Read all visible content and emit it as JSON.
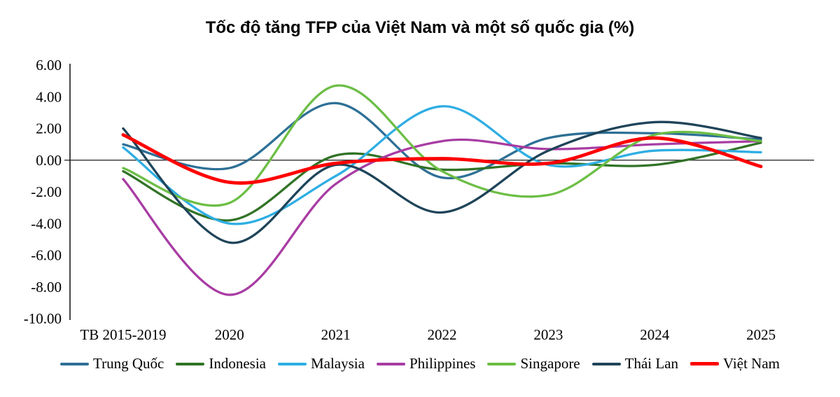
{
  "chart_data": {
    "type": "line",
    "title": "Tốc độ tăng TFP của Việt Nam và một số quốc gia (%)",
    "categories": [
      "TB 2015-2019",
      "2020",
      "2021",
      "2022",
      "2023",
      "2024",
      "2025"
    ],
    "series": [
      {
        "name": "Trung Quốc",
        "color": "#2E7096",
        "line_width": 3.3,
        "values": [
          1.0,
          -0.5,
          3.6,
          -1.1,
          1.4,
          1.7,
          1.3
        ]
      },
      {
        "name": "Indonesia",
        "color": "#317326",
        "line_width": 3.3,
        "values": [
          -0.7,
          -3.8,
          0.3,
          -0.6,
          -0.2,
          -0.3,
          1.1
        ]
      },
      {
        "name": "Malaysia",
        "color": "#2FAEE3",
        "line_width": 3.3,
        "values": [
          0.8,
          -4.0,
          -1.0,
          3.4,
          -0.3,
          0.6,
          0.5
        ]
      },
      {
        "name": "Philippines",
        "color": "#A83CA3",
        "line_width": 3.3,
        "values": [
          -1.2,
          -8.5,
          -1.5,
          1.2,
          0.7,
          1.0,
          1.2
        ]
      },
      {
        "name": "Singapore",
        "color": "#6CBE45",
        "line_width": 3.3,
        "values": [
          -0.5,
          -2.7,
          4.7,
          -0.7,
          -2.2,
          1.6,
          1.2
        ]
      },
      {
        "name": "Thái Lan",
        "color": "#1F4459",
        "line_width": 3.3,
        "values": [
          2.0,
          -5.2,
          -0.3,
          -3.3,
          0.6,
          2.4,
          1.4
        ]
      },
      {
        "name": "Việt Nam",
        "color": "#FF0000",
        "line_width": 4.8,
        "values": [
          1.6,
          -1.4,
          -0.2,
          0.1,
          -0.2,
          1.4,
          -0.4
        ]
      }
    ],
    "ylim": [
      -10,
      6
    ],
    "ytick_step": 2,
    "ytick_labels": [
      "6.00",
      "4.00",
      "2.00",
      "0.00",
      "-2.00",
      "-4.00",
      "-6.00",
      "-8.00",
      "-10.00"
    ],
    "grid": "zero-line-only",
    "legend_position": "bottom",
    "axis_color": "#1a1a1a",
    "line_style": "smooth-spline"
  }
}
